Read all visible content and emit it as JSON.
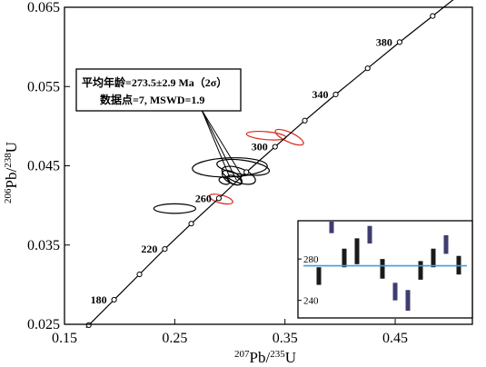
{
  "chart_data": {
    "type": "concordia",
    "xlabel": {
      "mass": "207",
      "element": "Pb/",
      "mass2": "235",
      "element2": "U"
    },
    "ylabel": {
      "mass": "206",
      "element": "Pb/",
      "mass2": "238",
      "element2": "U"
    },
    "xlim": [
      0.15,
      0.52
    ],
    "ylim": [
      0.025,
      0.065
    ],
    "x_ticks": [
      {
        "value": 0.15,
        "label": "0.15"
      },
      {
        "value": 0.25,
        "label": "0.25"
      },
      {
        "value": 0.35,
        "label": "0.35"
      },
      {
        "value": 0.45,
        "label": "0.45"
      }
    ],
    "y_ticks": [
      {
        "value": 0.025,
        "label": "0.025"
      },
      {
        "value": 0.035,
        "label": "0.035"
      },
      {
        "value": 0.045,
        "label": "0.045"
      },
      {
        "value": 0.055,
        "label": "0.055"
      },
      {
        "value": 0.065,
        "label": "0.065"
      }
    ],
    "concordia_points": [
      {
        "x": 0.172,
        "y": 0.0249
      },
      {
        "x": 0.195,
        "y": 0.0281
      },
      {
        "x": 0.218,
        "y": 0.0313
      },
      {
        "x": 0.241,
        "y": 0.0345
      },
      {
        "x": 0.265,
        "y": 0.0377
      },
      {
        "x": 0.29,
        "y": 0.0409
      },
      {
        "x": 0.315,
        "y": 0.0442
      },
      {
        "x": 0.341,
        "y": 0.0474
      },
      {
        "x": 0.368,
        "y": 0.0507
      },
      {
        "x": 0.396,
        "y": 0.054
      },
      {
        "x": 0.425,
        "y": 0.0573
      },
      {
        "x": 0.454,
        "y": 0.0606
      },
      {
        "x": 0.484,
        "y": 0.0639
      }
    ],
    "age_labels": [
      {
        "label": "180",
        "x": 0.195,
        "y": 0.0281
      },
      {
        "label": "220",
        "x": 0.241,
        "y": 0.0345
      },
      {
        "label": "260",
        "x": 0.29,
        "y": 0.0409
      },
      {
        "label": "300",
        "x": 0.341,
        "y": 0.0474
      },
      {
        "label": "340",
        "x": 0.396,
        "y": 0.054
      },
      {
        "label": "380",
        "x": 0.454,
        "y": 0.0606
      }
    ],
    "ellipses": [
      {
        "cx": 0.3,
        "cy": 0.0448,
        "rx": 0.034,
        "ry": 0.0012,
        "angle": -2,
        "color": "#000000"
      },
      {
        "cx": 0.312,
        "cy": 0.0448,
        "rx": 0.024,
        "ry": 0.0009,
        "angle": 8,
        "color": "#000000"
      },
      {
        "cx": 0.308,
        "cy": 0.0438,
        "rx": 0.016,
        "ry": 0.0009,
        "angle": 20,
        "color": "#000000"
      },
      {
        "cx": 0.302,
        "cy": 0.0435,
        "rx": 0.01,
        "ry": 0.0007,
        "angle": 30,
        "color": "#000000"
      },
      {
        "cx": 0.304,
        "cy": 0.0432,
        "rx": 0.007,
        "ry": 0.0005,
        "angle": 25,
        "color": "#000000"
      },
      {
        "cx": 0.295,
        "cy": 0.0431,
        "rx": 0.005,
        "ry": 0.0004,
        "angle": 20,
        "color": "#000000"
      },
      {
        "cx": 0.25,
        "cy": 0.0396,
        "rx": 0.019,
        "ry": 0.0006,
        "angle": 0,
        "color": "#000000"
      },
      {
        "cx": 0.333,
        "cy": 0.0488,
        "rx": 0.018,
        "ry": 0.0005,
        "angle": 5,
        "color": "#d8281e"
      },
      {
        "cx": 0.354,
        "cy": 0.0486,
        "rx": 0.014,
        "ry": 0.0006,
        "angle": 25,
        "color": "#d8281e"
      },
      {
        "cx": 0.292,
        "cy": 0.0408,
        "rx": 0.011,
        "ry": 0.0005,
        "angle": 15,
        "color": "#d8281e"
      }
    ],
    "annotation": {
      "line1_cn": "平均年龄",
      "line1_value": "=273.5±2.9 Ma（2σ）",
      "line2_cn": "数据点",
      "line2_value": "=7, MSWD=1.9",
      "pointer_targets": [
        {
          "x": 0.3,
          "y": 0.0435
        },
        {
          "x": 0.306,
          "y": 0.0432
        },
        {
          "x": 0.311,
          "y": 0.0437
        }
      ]
    },
    "inset": {
      "type": "weighted_mean",
      "ylim": [
        223,
        317
      ],
      "y_ticks": [
        {
          "value": 240,
          "label": "240"
        },
        {
          "value": 280,
          "label": "280"
        }
      ],
      "mean": 273.5,
      "mean_color": "#3f9fd8",
      "bars": [
        {
          "index": 1,
          "low": 255,
          "high": 272,
          "color": "#1a1a1a"
        },
        {
          "index": 2,
          "low": 305,
          "high": 325,
          "color": "#3f3d6e"
        },
        {
          "index": 3,
          "low": 272,
          "high": 290,
          "color": "#1a1a1a"
        },
        {
          "index": 4,
          "low": 275,
          "high": 300,
          "color": "#1a1a1a"
        },
        {
          "index": 5,
          "low": 295,
          "high": 312,
          "color": "#3f3d6e"
        },
        {
          "index": 6,
          "low": 261,
          "high": 280,
          "color": "#1a1a1a"
        },
        {
          "index": 7,
          "low": 240,
          "high": 257,
          "color": "#3f3d6e"
        },
        {
          "index": 8,
          "low": 230,
          "high": 250,
          "color": "#3f3d6e"
        },
        {
          "index": 9,
          "low": 260,
          "high": 278,
          "color": "#1a1a1a"
        },
        {
          "index": 10,
          "low": 272,
          "high": 290,
          "color": "#1a1a1a"
        },
        {
          "index": 11,
          "low": 285,
          "high": 303,
          "color": "#3f3d6e"
        },
        {
          "index": 12,
          "low": 265,
          "high": 283,
          "color": "#1a1a1a"
        }
      ]
    }
  }
}
